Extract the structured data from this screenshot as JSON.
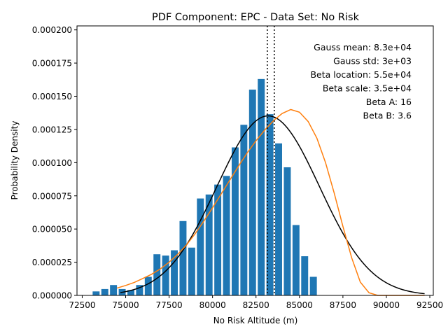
{
  "chart_data": {
    "type": "bar",
    "title": "PDF Component: EPC - Data Set: No Risk",
    "xlabel": "No Risk Altitude (m)",
    "ylabel": "Probability Density",
    "xlim": [
      72200,
      92700
    ],
    "ylim": [
      0,
      0.000203
    ],
    "xticks": [
      72500,
      75000,
      77500,
      80000,
      82500,
      85000,
      87500,
      90000,
      92500
    ],
    "xtick_labels": [
      "72500",
      "75000",
      "77500",
      "80000",
      "82500",
      "85000",
      "87500",
      "90000",
      "92500"
    ],
    "yticks": [
      0,
      2.5e-05,
      5e-05,
      7.5e-05,
      0.0001,
      0.000125,
      0.00015,
      0.000175,
      0.0002
    ],
    "ytick_labels": [
      "0.000000",
      "0.000025",
      "0.000050",
      "0.000075",
      "0.000100",
      "0.000125",
      "0.000150",
      "0.000175",
      "0.000200"
    ],
    "grid": false,
    "histogram": {
      "color": "#1f77b4",
      "bin_width": 500,
      "bar_width": 400,
      "bins": [
        {
          "x": 73300,
          "value": 3e-06
        },
        {
          "x": 73800,
          "value": 4.8e-06
        },
        {
          "x": 74300,
          "value": 7.8e-06
        },
        {
          "x": 74800,
          "value": 4.8e-06
        },
        {
          "x": 75300,
          "value": 4e-06
        },
        {
          "x": 75800,
          "value": 7.8e-06
        },
        {
          "x": 76300,
          "value": 1.4e-05
        },
        {
          "x": 76800,
          "value": 3.1e-05
        },
        {
          "x": 77300,
          "value": 3e-05
        },
        {
          "x": 77800,
          "value": 3.4e-05
        },
        {
          "x": 78300,
          "value": 5.6e-05
        },
        {
          "x": 78800,
          "value": 3.6e-05
        },
        {
          "x": 79300,
          "value": 7.3e-05
        },
        {
          "x": 79800,
          "value": 7.6e-05
        },
        {
          "x": 80300,
          "value": 8.35e-05
        },
        {
          "x": 80800,
          "value": 9e-05
        },
        {
          "x": 81300,
          "value": 0.0001115
        },
        {
          "x": 81800,
          "value": 0.0001285
        },
        {
          "x": 82300,
          "value": 0.000155
        },
        {
          "x": 82800,
          "value": 0.000163
        },
        {
          "x": 83300,
          "value": 0.0001365
        },
        {
          "x": 83800,
          "value": 0.0001145
        },
        {
          "x": 84300,
          "value": 9.65e-05
        },
        {
          "x": 84800,
          "value": 5.3e-05
        },
        {
          "x": 85300,
          "value": 2.95e-05
        },
        {
          "x": 85800,
          "value": 1.4e-05
        }
      ]
    },
    "series": [
      {
        "kind": "gaussian",
        "color": "#000000",
        "mean": 83200,
        "std": 2950,
        "x_start": 74700,
        "x_end": 92200
      },
      {
        "kind": "beta",
        "color": "#ff7f0e",
        "points": [
          [
            74500,
            5.5e-06
          ],
          [
            75000,
            7.5e-06
          ],
          [
            75500,
            9.8e-06
          ],
          [
            76000,
            1.28e-05
          ],
          [
            76500,
            1.6e-05
          ],
          [
            77000,
            2e-05
          ],
          [
            77500,
            2.5e-05
          ],
          [
            78000,
            3.1e-05
          ],
          [
            78500,
            3.8e-05
          ],
          [
            79000,
            4.65e-05
          ],
          [
            79500,
            5.6e-05
          ],
          [
            80000,
            6.6e-05
          ],
          [
            80500,
            7.65e-05
          ],
          [
            81000,
            8.7e-05
          ],
          [
            81500,
            9.75e-05
          ],
          [
            82000,
            0.0001075
          ],
          [
            82500,
            0.0001165
          ],
          [
            83000,
            0.0001245
          ],
          [
            83500,
            0.0001315
          ],
          [
            84000,
            0.000137
          ],
          [
            84500,
            0.00014
          ],
          [
            85000,
            0.000138
          ],
          [
            85500,
            0.000131
          ],
          [
            86000,
            0.0001185
          ],
          [
            86500,
            0.0001
          ],
          [
            87000,
            7.7e-05
          ],
          [
            87500,
            5.2e-05
          ],
          [
            88000,
            2.85e-05
          ],
          [
            88500,
            1e-05
          ],
          [
            89000,
            2e-06
          ],
          [
            89500,
            0.0
          ],
          [
            90000,
            0.0
          ],
          [
            91000,
            0.0
          ],
          [
            92200,
            0.0
          ]
        ]
      }
    ],
    "vlines": [
      {
        "x": 83150,
        "style": "dotted",
        "color": "#000000"
      },
      {
        "x": 83550,
        "style": "dotted",
        "color": "#000000"
      }
    ],
    "annotations": [
      "Gauss mean: 8.3e+04",
      "Gauss std: 3e+03",
      "Beta location: 5.5e+04",
      "Beta scale: 3.5e+04",
      "Beta A: 16",
      "Beta B: 3.6"
    ],
    "annotation_placement": "top-right"
  }
}
